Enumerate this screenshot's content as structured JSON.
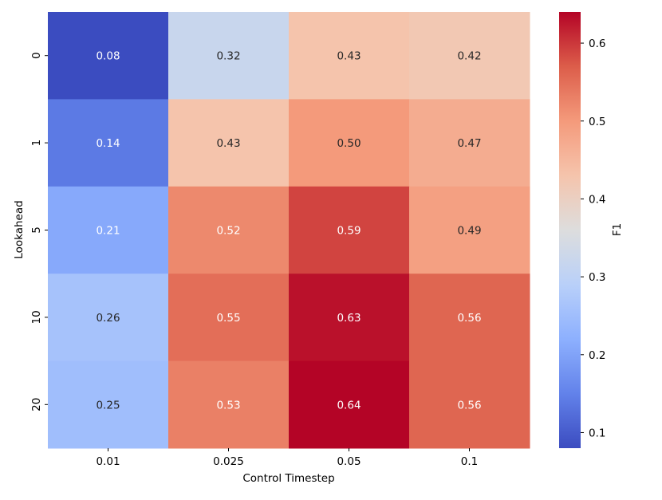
{
  "chart_data": {
    "type": "heatmap",
    "xlabel": "Control Timestep",
    "ylabel": "Lookahead",
    "x_categories": [
      "0.01",
      "0.025",
      "0.05",
      "0.1"
    ],
    "y_categories": [
      "0",
      "1",
      "5",
      "10",
      "20"
    ],
    "values": [
      [
        0.08,
        0.32,
        0.43,
        0.42
      ],
      [
        0.14,
        0.43,
        0.5,
        0.47
      ],
      [
        0.21,
        0.52,
        0.59,
        0.49
      ],
      [
        0.26,
        0.55,
        0.63,
        0.56
      ],
      [
        0.25,
        0.53,
        0.64,
        0.56
      ]
    ],
    "annotations_format": "0.00",
    "colormap": "coolwarm",
    "colorbar": {
      "label": "F1",
      "range": [
        0.08,
        0.64
      ],
      "ticks": [
        "0.1",
        "0.2",
        "0.3",
        "0.4",
        "0.5",
        "0.6"
      ]
    }
  }
}
